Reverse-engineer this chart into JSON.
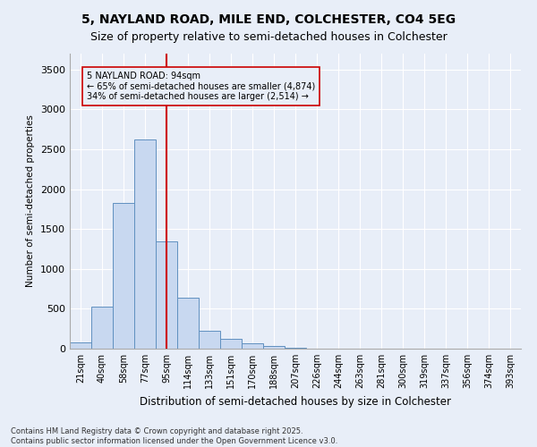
{
  "title1": "5, NAYLAND ROAD, MILE END, COLCHESTER, CO4 5EG",
  "title2": "Size of property relative to semi-detached houses in Colchester",
  "xlabel": "Distribution of semi-detached houses by size in Colchester",
  "ylabel": "Number of semi-detached properties",
  "categories": [
    "21sqm",
    "40sqm",
    "58sqm",
    "77sqm",
    "95sqm",
    "114sqm",
    "133sqm",
    "151sqm",
    "170sqm",
    "188sqm",
    "207sqm",
    "226sqm",
    "244sqm",
    "263sqm",
    "281sqm",
    "300sqm",
    "319sqm",
    "337sqm",
    "356sqm",
    "374sqm",
    "393sqm"
  ],
  "values": [
    80,
    530,
    1830,
    2620,
    1340,
    640,
    220,
    125,
    70,
    35,
    8,
    2,
    0,
    0,
    0,
    0,
    0,
    0,
    0,
    0,
    0
  ],
  "bar_color": "#c8d8f0",
  "bar_edge_color": "#6090c0",
  "vline_color": "#cc0000",
  "annotation_title": "5 NAYLAND ROAD: 94sqm",
  "annotation_line1": "← 65% of semi-detached houses are smaller (4,874)",
  "annotation_line2": "34% of semi-detached houses are larger (2,514) →",
  "annotation_box_color": "#cc0000",
  "ylim": [
    0,
    3700
  ],
  "yticks": [
    0,
    500,
    1000,
    1500,
    2000,
    2500,
    3000,
    3500
  ],
  "footnote1": "Contains HM Land Registry data © Crown copyright and database right 2025.",
  "footnote2": "Contains public sector information licensed under the Open Government Licence v3.0.",
  "bg_color": "#e8eef8",
  "grid_color": "#ffffff",
  "title_fontsize": 10,
  "subtitle_fontsize": 9
}
